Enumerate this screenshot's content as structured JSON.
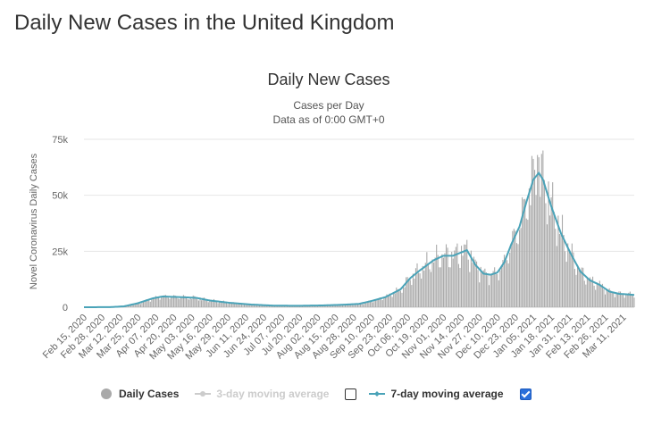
{
  "page": {
    "title": "Daily New Cases in the United Kingdom"
  },
  "legend": {
    "daily_label": "Daily Cases",
    "ma3_label": "3-day moving average",
    "ma7_label": "7-day moving average",
    "ma3_checked": false,
    "ma7_checked": true
  },
  "colors": {
    "bars": "#a9a9a9",
    "line": "#4aa3b8",
    "grid": "#e6e6e6",
    "disabled": "#cccccc",
    "checkbox": "#2a6fdb"
  },
  "chart_data": {
    "type": "bar",
    "title": "Daily New Cases",
    "subtitle_line1": "Cases per Day",
    "subtitle_line2": "Data as of 0:00 GMT+0",
    "ylabel": "Novel Coronavirus Daily Cases",
    "xlabel": "",
    "ylim": [
      0,
      75000
    ],
    "yticks": [
      0,
      25000,
      50000,
      75000
    ],
    "ytick_labels": [
      "0",
      "25k",
      "50k",
      "75k"
    ],
    "x_start": "2020-02-15",
    "x_end": "2021-03-19",
    "x_tick_labels": [
      "Feb 15, 2020",
      "Feb 28, 2020",
      "Mar 12, 2020",
      "Mar 25, 2020",
      "Apr 07, 2020",
      "Apr 20, 2020",
      "May 03, 2020",
      "May 16, 2020",
      "May 29, 2020",
      "Jun 11, 2020",
      "Jun 24, 2020",
      "Jul 07, 2020",
      "Jul 20, 2020",
      "Aug 02, 2020",
      "Aug 15, 2020",
      "Aug 28, 2020",
      "Sep 10, 2020",
      "Sep 23, 2020",
      "Oct 06, 2020",
      "Oct 19, 2020",
      "Nov 01, 2020",
      "Nov 14, 2020",
      "Nov 27, 2020",
      "Dec 10, 2020",
      "Dec 23, 2020",
      "Jan 05, 2021",
      "Jan 18, 2021",
      "Jan 31, 2021",
      "Feb 13, 2021",
      "Feb 26, 2021",
      "Mar 11, 2021"
    ],
    "series": [
      {
        "name": "7-day moving average",
        "type": "line",
        "keypoints": [
          [
            "2020-02-15",
            0
          ],
          [
            "2020-03-05",
            50
          ],
          [
            "2020-03-15",
            400
          ],
          [
            "2020-03-25",
            1800
          ],
          [
            "2020-04-05",
            4000
          ],
          [
            "2020-04-12",
            4800
          ],
          [
            "2020-04-25",
            4500
          ],
          [
            "2020-05-06",
            4200
          ],
          [
            "2020-05-16",
            3000
          ],
          [
            "2020-05-30",
            2000
          ],
          [
            "2020-06-15",
            1200
          ],
          [
            "2020-07-01",
            700
          ],
          [
            "2020-07-20",
            650
          ],
          [
            "2020-08-05",
            800
          ],
          [
            "2020-08-20",
            1100
          ],
          [
            "2020-09-01",
            1500
          ],
          [
            "2020-09-10",
            2800
          ],
          [
            "2020-09-20",
            4500
          ],
          [
            "2020-10-01",
            8000
          ],
          [
            "2020-10-08",
            13000
          ],
          [
            "2020-10-15",
            16500
          ],
          [
            "2020-10-25",
            21000
          ],
          [
            "2020-11-01",
            23000
          ],
          [
            "2020-11-08",
            23000
          ],
          [
            "2020-11-14",
            24500
          ],
          [
            "2020-11-18",
            25500
          ],
          [
            "2020-11-24",
            19000
          ],
          [
            "2020-11-30",
            15000
          ],
          [
            "2020-12-05",
            14500
          ],
          [
            "2020-12-10",
            15500
          ],
          [
            "2020-12-15",
            20000
          ],
          [
            "2020-12-20",
            28000
          ],
          [
            "2020-12-26",
            36000
          ],
          [
            "2020-12-31",
            47000
          ],
          [
            "2021-01-05",
            57000
          ],
          [
            "2021-01-09",
            60000
          ],
          [
            "2021-01-12",
            57000
          ],
          [
            "2021-01-18",
            45000
          ],
          [
            "2021-01-25",
            33000
          ],
          [
            "2021-02-01",
            24000
          ],
          [
            "2021-02-08",
            16000
          ],
          [
            "2021-02-15",
            12000
          ],
          [
            "2021-02-22",
            10000
          ],
          [
            "2021-03-01",
            7000
          ],
          [
            "2021-03-08",
            6000
          ],
          [
            "2021-03-19",
            5500
          ]
        ]
      },
      {
        "name": "Daily Cases",
        "type": "bar",
        "peak": [
          "2021-01-08",
          68000
        ]
      }
    ]
  }
}
